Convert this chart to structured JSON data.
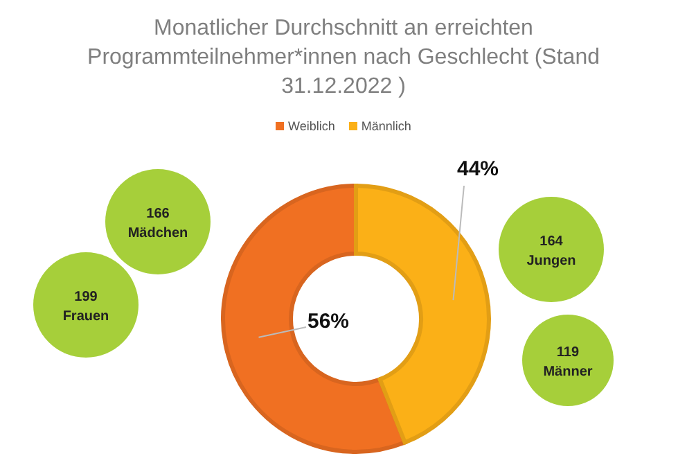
{
  "chart_data": {
    "type": "donut",
    "title": "Monatlicher Durchschnitt an erreichten Programmteilnehmer*innen nach Geschlecht (Stand 31.12.2022 )",
    "categories": [
      "Weiblich",
      "Männlich"
    ],
    "values": [
      56,
      44
    ],
    "colors": [
      "#f07022",
      "#fbb017"
    ],
    "value_labels": [
      "56%",
      "44%"
    ],
    "legend": "top",
    "annotations": [
      "166 Mädchen",
      "199 Frauen",
      "164 Jungen",
      "119 Männer"
    ]
  }
}
